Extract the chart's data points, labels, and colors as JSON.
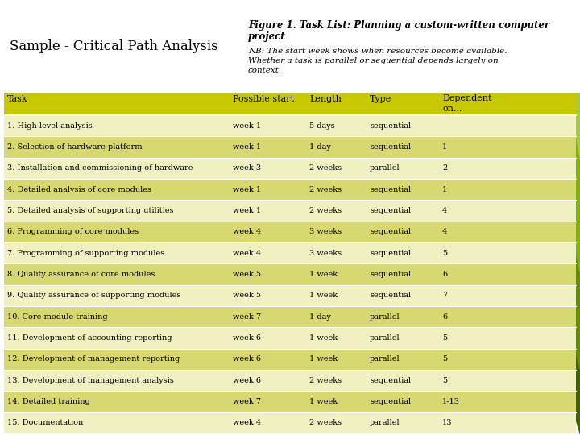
{
  "title_left": "Sample - Critical Path Analysis",
  "title_right_line1": "Figure 1. Task List: Planning a custom-written computer",
  "title_right_line2": "project",
  "nb_line1": "NB: The start week shows when resources become available.",
  "nb_line2": "Whether a task is parallel or sequential depends largely on",
  "nb_line3": "context.",
  "header": [
    "Task",
    "Possible start",
    "Length",
    "Type",
    "Dependent",
    "on..."
  ],
  "rows": [
    [
      "1. High level analysis",
      "week 1",
      "5 days",
      "sequential",
      ""
    ],
    [
      "2. Selection of hardware platform",
      "week 1",
      "1 day",
      "sequential",
      "1"
    ],
    [
      "3. Installation and commissioning of hardware",
      "week 3",
      "2 weeks",
      "parallel",
      "2"
    ],
    [
      "4. Detailed analysis of core modules",
      "week 1",
      "2 weeks",
      "sequential",
      "1"
    ],
    [
      "5. Detailed analysis of supporting utilities",
      "week 1",
      "2 weeks",
      "sequential",
      "4"
    ],
    [
      "6. Programming of core modules",
      "week 4",
      "3 weeks",
      "sequential",
      "4"
    ],
    [
      "7. Programming of supporting modules",
      "week 4",
      "3 weeks",
      "sequential",
      "5"
    ],
    [
      "8. Quality assurance of core modules",
      "week 5",
      "1 week",
      "sequential",
      "6"
    ],
    [
      "9. Quality assurance of supporting modules",
      "week 5",
      "1 week",
      "sequential",
      "7"
    ],
    [
      "10. Core module training",
      "week 7",
      "1 day",
      "parallel",
      "6"
    ],
    [
      "11. Development of accounting reporting",
      "week 6",
      "1 week",
      "parallel",
      "5"
    ],
    [
      "12. Development of management reporting",
      "week 6",
      "1 week",
      "parallel",
      "5"
    ],
    [
      "13. Development of management analysis",
      "week 6",
      "2 weeks",
      "sequential",
      "5"
    ],
    [
      "14. Detailed training",
      "week 7",
      "1 week",
      "sequential",
      "1-13"
    ],
    [
      "15. Documentation",
      "week 4",
      "2 weeks",
      "parallel",
      "13"
    ]
  ],
  "bg_color": "#ffffff",
  "header_bg": "#c8c800",
  "row_bg_light": "#f0f0c0",
  "row_bg_mid": "#d8d870",
  "green_dark": "#3a6600",
  "green_mid": "#5a9200",
  "green_light": "#7ab800",
  "green_lightest": "#a0cc40"
}
